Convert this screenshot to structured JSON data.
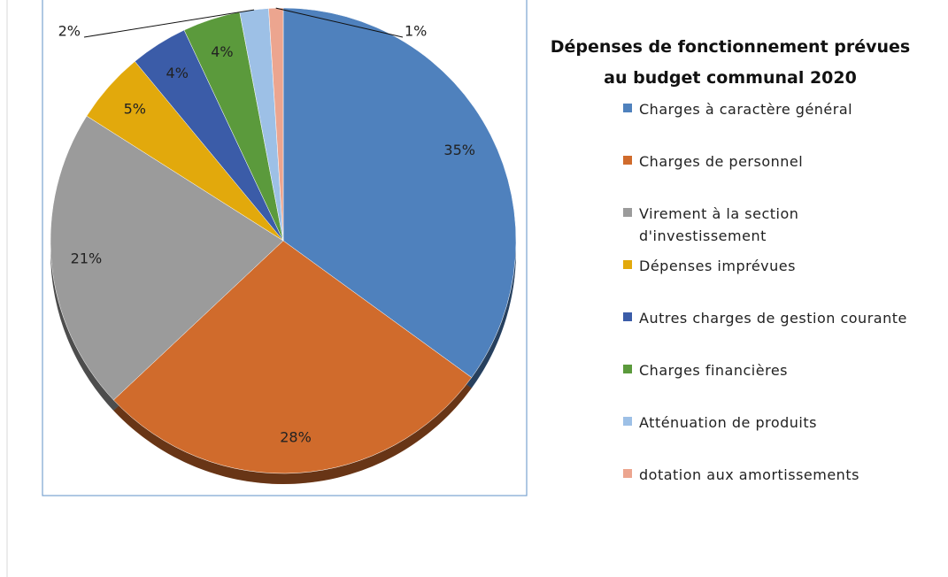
{
  "chart_data": {
    "type": "pie",
    "title": [
      "Dépenses de fonctionnement  prévues",
      "au budget communal  2020"
    ],
    "categories": [
      "Charges à caractère général",
      "Charges de personnel",
      "Virement à la section d'investissement",
      "Dépenses imprévues",
      "Autres charges de gestion courante",
      "Charges financières",
      "Atténuation de produits",
      "dotation aux amortissements"
    ],
    "values": [
      35,
      28,
      21,
      5,
      4,
      4,
      2,
      1
    ],
    "value_labels": [
      "35%",
      "28%",
      "21%",
      "5%",
      "4%",
      "4%",
      "2%",
      "1%"
    ],
    "colors": [
      "#4f81bd",
      "#d06b2c",
      "#9b9b9b",
      "#e2a90c",
      "#3b5ca8",
      "#5b9a3c",
      "#9dc0e6",
      "#eca58f"
    ],
    "legend": "right"
  }
}
